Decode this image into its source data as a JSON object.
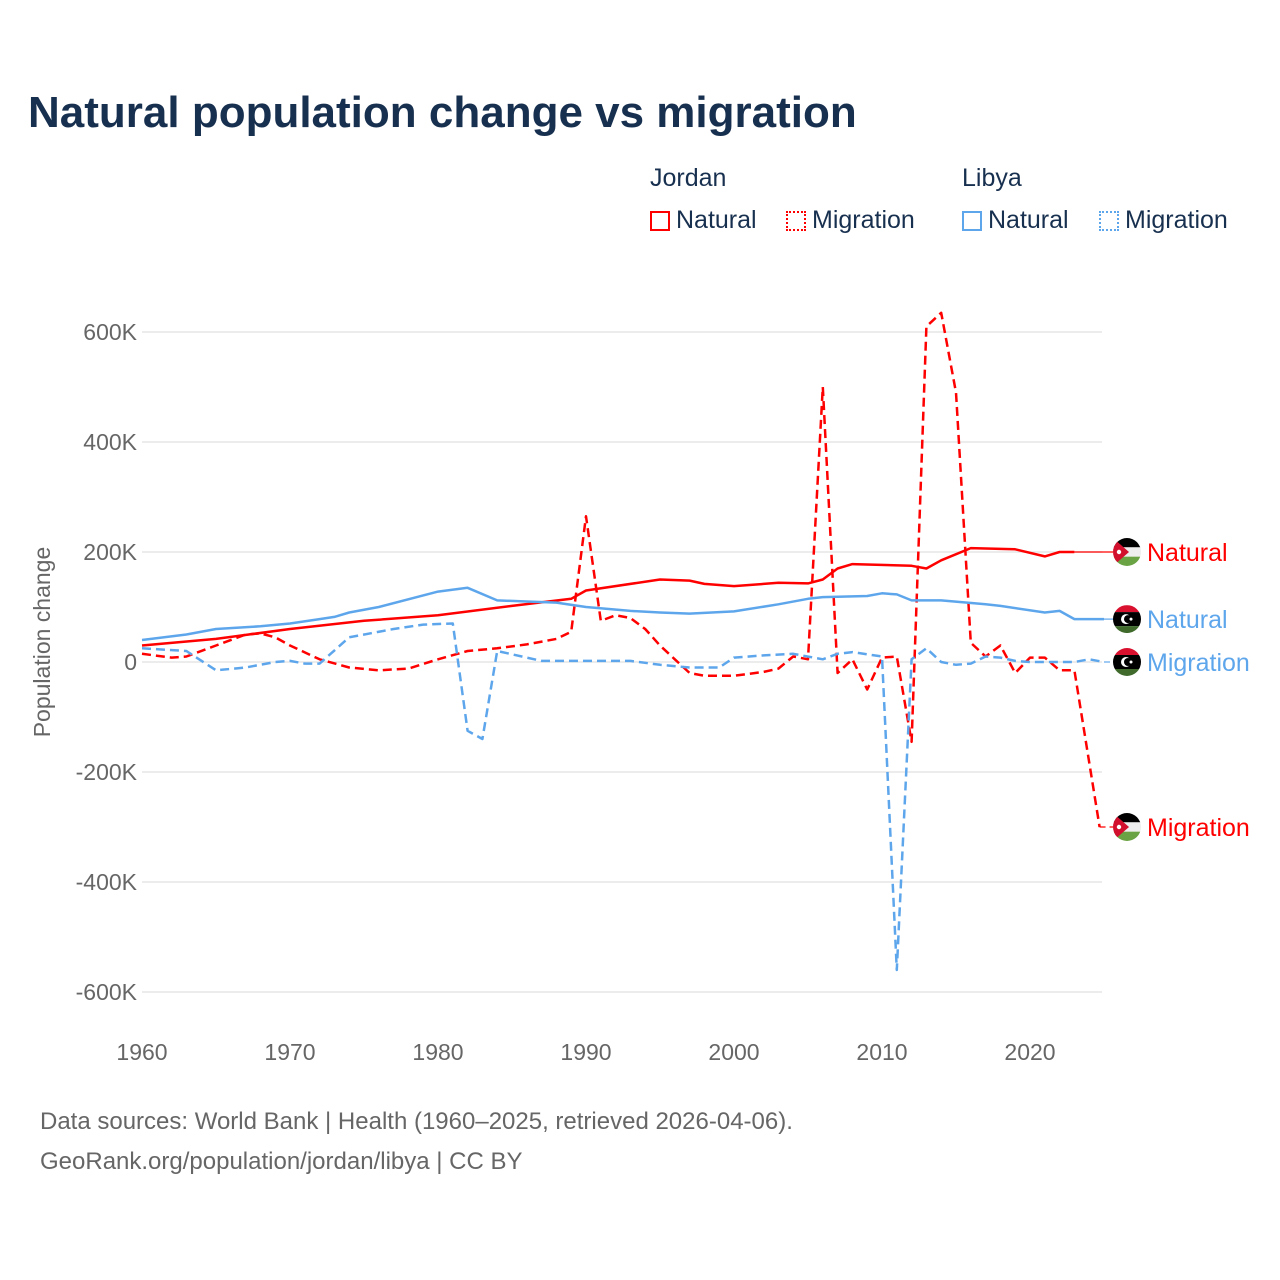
{
  "chart_data": {
    "type": "line",
    "title": "Natural population change vs migration",
    "ylabel": "Population change",
    "ylim": [
      -600000,
      650000
    ],
    "xlim": [
      1960,
      2025
    ],
    "yticks": [
      {
        "v": 600000,
        "label": "600K"
      },
      {
        "v": 400000,
        "label": "400K"
      },
      {
        "v": 200000,
        "label": "200K"
      },
      {
        "v": 0,
        "label": "0"
      },
      {
        "v": -200000,
        "label": "-200K"
      },
      {
        "v": -400000,
        "label": "-400K"
      },
      {
        "v": -600000,
        "label": "-600K"
      }
    ],
    "xticks": [
      1960,
      1970,
      1980,
      1990,
      2000,
      2010,
      2020
    ],
    "grid": true,
    "legend": {
      "placement": "top-right",
      "groups": [
        {
          "country": "Jordan",
          "items": [
            "Natural",
            "Migration"
          ]
        },
        {
          "country": "Libya",
          "items": [
            "Natural",
            "Migration"
          ]
        }
      ]
    },
    "series": [
      {
        "name": "Jordan Natural",
        "label": "Natural",
        "color": "#ff0000",
        "dash": false,
        "points": [
          [
            1960,
            30
          ],
          [
            1965,
            42
          ],
          [
            1970,
            60
          ],
          [
            1975,
            75
          ],
          [
            1980,
            85
          ],
          [
            1985,
            102
          ],
          [
            1989,
            115
          ],
          [
            1990,
            130
          ],
          [
            1995,
            150
          ],
          [
            1997,
            148
          ],
          [
            1998,
            142
          ],
          [
            2000,
            138
          ],
          [
            2003,
            144
          ],
          [
            2005,
            143
          ],
          [
            2006,
            150
          ],
          [
            2007,
            170
          ],
          [
            2008,
            178
          ],
          [
            2012,
            175
          ],
          [
            2013,
            170
          ],
          [
            2014,
            185
          ],
          [
            2016,
            207
          ],
          [
            2019,
            205
          ],
          [
            2021,
            192
          ],
          [
            2022,
            200
          ],
          [
            2023,
            200
          ]
        ]
      },
      {
        "name": "Jordan Migration",
        "label": "Migration",
        "color": "#ff0000",
        "dash": true,
        "points": [
          [
            1960,
            15
          ],
          [
            1962,
            8
          ],
          [
            1963,
            10
          ],
          [
            1965,
            30
          ],
          [
            1967,
            50
          ],
          [
            1968,
            52
          ],
          [
            1969,
            45
          ],
          [
            1970,
            30
          ],
          [
            1972,
            5
          ],
          [
            1974,
            -10
          ],
          [
            1976,
            -15
          ],
          [
            1978,
            -12
          ],
          [
            1980,
            5
          ],
          [
            1982,
            20
          ],
          [
            1984,
            25
          ],
          [
            1986,
            32
          ],
          [
            1988,
            42
          ],
          [
            1989,
            55
          ],
          [
            1990,
            265
          ],
          [
            1991,
            75
          ],
          [
            1992,
            85
          ],
          [
            1993,
            80
          ],
          [
            1994,
            60
          ],
          [
            1995,
            30
          ],
          [
            1996,
            5
          ],
          [
            1997,
            -20
          ],
          [
            1998,
            -25
          ],
          [
            2000,
            -25
          ],
          [
            2002,
            -18
          ],
          [
            2003,
            -12
          ],
          [
            2004,
            10
          ],
          [
            2005,
            5
          ],
          [
            2006,
            500
          ],
          [
            2007,
            -20
          ],
          [
            2008,
            5
          ],
          [
            2009,
            -50
          ],
          [
            2010,
            8
          ],
          [
            2011,
            10
          ],
          [
            2012,
            -145
          ],
          [
            2013,
            610
          ],
          [
            2014,
            635
          ],
          [
            2015,
            490
          ],
          [
            2016,
            35
          ],
          [
            2017,
            10
          ],
          [
            2018,
            30
          ],
          [
            2019,
            -20
          ],
          [
            2020,
            8
          ],
          [
            2021,
            8
          ],
          [
            2022,
            -15
          ],
          [
            2023,
            -15
          ],
          [
            2024.7,
            -300
          ]
        ]
      },
      {
        "name": "Libya Natural",
        "label": "Natural",
        "color": "#5ea6ec",
        "dash": false,
        "points": [
          [
            1960,
            40
          ],
          [
            1963,
            50
          ],
          [
            1965,
            60
          ],
          [
            1968,
            65
          ],
          [
            1970,
            70
          ],
          [
            1972,
            78
          ],
          [
            1973,
            82
          ],
          [
            1974,
            90
          ],
          [
            1976,
            100
          ],
          [
            1980,
            128
          ],
          [
            1982,
            135
          ],
          [
            1984,
            112
          ],
          [
            1986,
            110
          ],
          [
            1988,
            108
          ],
          [
            1990,
            100
          ],
          [
            1993,
            93
          ],
          [
            1995,
            90
          ],
          [
            1997,
            88
          ],
          [
            2000,
            92
          ],
          [
            2003,
            105
          ],
          [
            2005,
            115
          ],
          [
            2006,
            118
          ],
          [
            2009,
            120
          ],
          [
            2010,
            125
          ],
          [
            2011,
            123
          ],
          [
            2012,
            112
          ],
          [
            2014,
            112
          ],
          [
            2017,
            105
          ],
          [
            2018,
            102
          ],
          [
            2021,
            90
          ],
          [
            2022,
            93
          ],
          [
            2023,
            78
          ],
          [
            2025,
            78
          ]
        ]
      },
      {
        "name": "Libya Migration",
        "label": "Migration",
        "color": "#5ea6ec",
        "dash": true,
        "points": [
          [
            1960,
            25
          ],
          [
            1963,
            20
          ],
          [
            1965,
            -15
          ],
          [
            1967,
            -10
          ],
          [
            1969,
            0
          ],
          [
            1970,
            2
          ],
          [
            1971,
            -3
          ],
          [
            1972,
            -3
          ],
          [
            1974,
            45
          ],
          [
            1977,
            60
          ],
          [
            1979,
            68
          ],
          [
            1981,
            70
          ],
          [
            1982,
            -125
          ],
          [
            1983,
            -140
          ],
          [
            1984,
            20
          ],
          [
            1987,
            2
          ],
          [
            1990,
            2
          ],
          [
            1993,
            2
          ],
          [
            1995,
            -5
          ],
          [
            1997,
            -10
          ],
          [
            1999,
            -10
          ],
          [
            2000,
            8
          ],
          [
            2002,
            12
          ],
          [
            2004,
            15
          ],
          [
            2006,
            5
          ],
          [
            2007,
            15
          ],
          [
            2008,
            18
          ],
          [
            2010,
            10
          ],
          [
            2011,
            -560
          ],
          [
            2012,
            5
          ],
          [
            2013,
            25
          ],
          [
            2014,
            0
          ],
          [
            2015,
            -5
          ],
          [
            2016,
            -3
          ],
          [
            2017,
            10
          ],
          [
            2018,
            8
          ],
          [
            2019,
            2
          ],
          [
            2020,
            0
          ],
          [
            2023,
            0
          ],
          [
            2024,
            5
          ],
          [
            2025,
            0
          ]
        ]
      }
    ],
    "end_labels": [
      {
        "series": 0,
        "text": "Natural",
        "value": 200,
        "flag": "jordan"
      },
      {
        "series": 2,
        "text": "Natural",
        "value": 78,
        "flag": "libya"
      },
      {
        "series": 3,
        "text": "Migration",
        "value": 0,
        "flag": "libya"
      },
      {
        "series": 1,
        "text": "Migration",
        "value": -300,
        "flag": "jordan"
      }
    ],
    "value_units": "thousands"
  },
  "footer": {
    "line1": "Data sources: World Bank | Health (1960–2025, retrieved 2026-04-06).",
    "line2": "GeoRank.org/population/jordan/libya | CC BY"
  }
}
